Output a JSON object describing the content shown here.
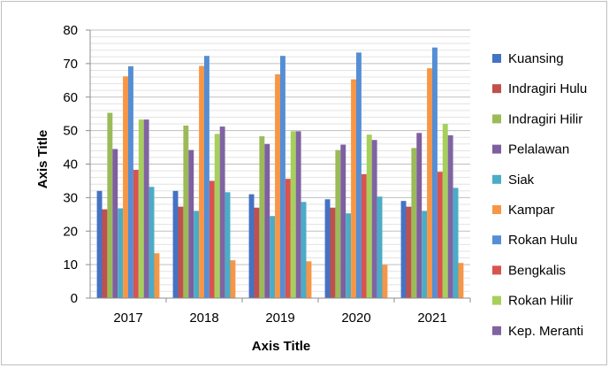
{
  "chart_data": {
    "type": "bar",
    "title": "",
    "xlabel": "Axis Title",
    "ylabel": "Axis Title",
    "ylim": [
      0,
      80
    ],
    "yticks": [
      0,
      10,
      20,
      30,
      40,
      50,
      60,
      70,
      80
    ],
    "grid": true,
    "legend_position": "right",
    "categories": [
      "2017",
      "2018",
      "2019",
      "2020",
      "2021"
    ],
    "series": [
      {
        "name": "Kuansing",
        "color": "#4472c4",
        "values": [
          32,
          32,
          31,
          29.5,
          29
        ]
      },
      {
        "name": "Indragiri Hulu",
        "color": "#c0504d",
        "values": [
          26.5,
          27.3,
          27,
          27,
          27.3
        ]
      },
      {
        "name": "Indragiri Hilir",
        "color": "#9bbb59",
        "values": [
          55.3,
          51.5,
          48.3,
          44.2,
          44.8
        ]
      },
      {
        "name": "Pelalawan",
        "color": "#7e5fa0",
        "values": [
          44.5,
          44.2,
          46,
          45.8,
          49.3
        ]
      },
      {
        "name": "Siak",
        "color": "#4bacc6",
        "values": [
          26.8,
          26,
          24.5,
          25.3,
          26
        ]
      },
      {
        "name": "Kampar",
        "color": "#f79646",
        "values": [
          66.2,
          69.3,
          66.8,
          65.3,
          68.6
        ]
      },
      {
        "name": "Rokan Hulu",
        "color": "#558ed5",
        "values": [
          69.2,
          72.3,
          72.3,
          73.3,
          74.8
        ]
      },
      {
        "name": "Bengkalis",
        "color": "#d9534f",
        "values": [
          38.3,
          35,
          35.6,
          37,
          37.7
        ]
      },
      {
        "name": "Rokan Hilir",
        "color": "#a6d05a",
        "values": [
          53.3,
          49,
          49.8,
          48.8,
          52
        ]
      },
      {
        "name": "Kep. Meranti",
        "color": "#8064a2",
        "values": [
          53.3,
          51.2,
          49.8,
          47.2,
          48.6
        ]
      },
      {
        "name": "",
        "color": "#4bacc6",
        "values": [
          33.2,
          31.6,
          28.7,
          30.3,
          32.9
        ]
      },
      {
        "name": "",
        "color": "#f79646",
        "values": [
          13.4,
          11.3,
          11,
          9.9,
          10.5
        ]
      }
    ]
  }
}
